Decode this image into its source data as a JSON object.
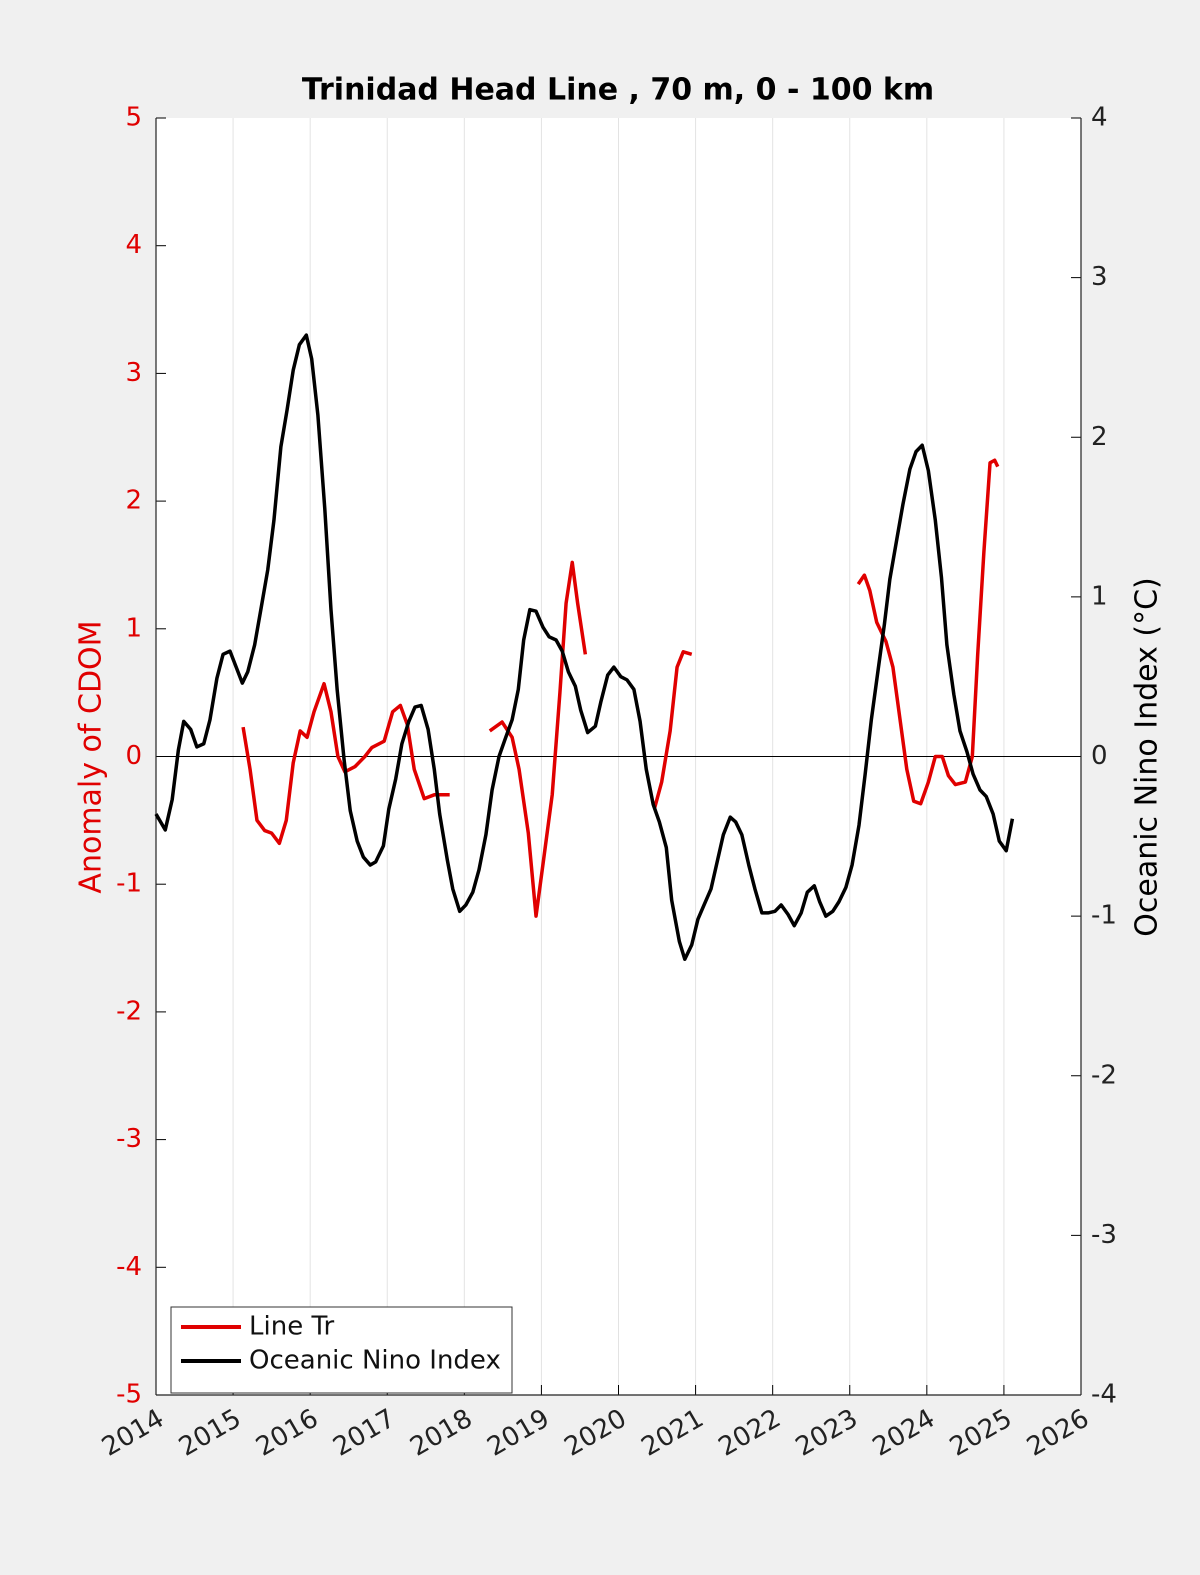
{
  "chart_data": {
    "type": "line",
    "title": "Trinidad Head Line , 70 m, 0 - 100 km",
    "ylabel": "Anomaly of CDOM",
    "y2label": "Oceanic Nino Index (°C)",
    "xlim": [
      2014,
      2026
    ],
    "xticks": [
      2014,
      2015,
      2016,
      2017,
      2018,
      2019,
      2020,
      2021,
      2022,
      2023,
      2024,
      2025,
      2026
    ],
    "ylim": [
      -5,
      5
    ],
    "yticks": [
      -5,
      -4,
      -3,
      -2,
      -1,
      0,
      1,
      2,
      3,
      4,
      5
    ],
    "y2lim": [
      -4,
      4
    ],
    "y2ticks": [
      -4,
      -3,
      -2,
      -1,
      0,
      1,
      2,
      3,
      4
    ],
    "ycolor": "#e00000",
    "grid": "x",
    "legend": "lower left",
    "series": [
      {
        "name": "Line Tr",
        "color": "#e00000",
        "axis": "y",
        "x": [
          2015.13,
          2015.22,
          2015.31,
          2015.41,
          2015.5,
          2015.6,
          2015.69,
          2015.78,
          2015.87,
          2015.96,
          2016.05,
          2016.18,
          2016.27,
          2016.36,
          2016.45,
          2016.58,
          2016.71,
          2016.8,
          2016.96,
          2017.07,
          2017.17,
          2017.26,
          2017.35,
          2017.48,
          2017.61,
          2017.81,
          2018.0,
          2018.33,
          2018.49,
          2018.62,
          2018.71,
          2018.83,
          2018.93,
          2019.03,
          2019.14,
          2019.24,
          2019.32,
          2019.4,
          2019.47,
          2019.57,
          2020.0,
          2020.47,
          2020.56,
          2020.67,
          2020.76,
          2020.84,
          2020.95,
          2022.0,
          2023.11,
          2023.19,
          2023.26,
          2023.35,
          2023.47,
          2023.56,
          2023.65,
          2023.74,
          2023.83,
          2023.92,
          2024.02,
          2024.11,
          2024.2,
          2024.28,
          2024.37,
          2024.5,
          2024.59,
          2024.66,
          2024.74,
          2024.82,
          2024.88,
          2024.92
        ],
        "values": [
          0.23,
          -0.1,
          -0.5,
          -0.58,
          -0.6,
          -0.68,
          -0.5,
          -0.05,
          0.2,
          0.15,
          0.35,
          0.57,
          0.35,
          0.0,
          -0.12,
          -0.08,
          0.0,
          0.07,
          0.12,
          0.35,
          0.4,
          0.25,
          -0.1,
          -0.33,
          -0.3,
          -0.3,
          null,
          0.2,
          0.27,
          0.15,
          -0.1,
          -0.6,
          -1.25,
          -0.8,
          -0.3,
          0.5,
          1.2,
          1.52,
          1.2,
          0.8,
          null,
          -0.4,
          -0.2,
          0.2,
          0.7,
          0.82,
          0.8,
          null,
          1.35,
          1.42,
          1.3,
          1.05,
          0.9,
          0.7,
          0.3,
          -0.1,
          -0.35,
          -0.37,
          -0.2,
          0.0,
          0.0,
          -0.15,
          -0.22,
          -0.2,
          0.0,
          0.8,
          1.6,
          2.3,
          2.32,
          2.27
        ]
      },
      {
        "name": "Oceanic Nino Index",
        "color": "#000000",
        "axis": "y2",
        "x": [
          2014.0,
          2014.12,
          2014.21,
          2014.29,
          2014.36,
          2014.45,
          2014.53,
          2014.62,
          2014.7,
          2014.79,
          2014.87,
          2014.96,
          2015.04,
          2015.12,
          2015.19,
          2015.28,
          2015.36,
          2015.45,
          2015.53,
          2015.62,
          2015.7,
          2015.78,
          2015.86,
          2015.95,
          2016.02,
          2016.1,
          2016.19,
          2016.27,
          2016.35,
          2016.44,
          2016.52,
          2016.61,
          2016.69,
          2016.78,
          2016.85,
          2016.95,
          2017.02,
          2017.11,
          2017.19,
          2017.28,
          2017.36,
          2017.44,
          2017.53,
          2017.61,
          2017.68,
          2017.78,
          2017.85,
          2017.94,
          2018.02,
          2018.11,
          2018.19,
          2018.28,
          2018.36,
          2018.45,
          2018.53,
          2018.62,
          2018.7,
          2018.77,
          2018.85,
          2018.93,
          2019.02,
          2019.1,
          2019.19,
          2019.27,
          2019.35,
          2019.44,
          2019.51,
          2019.6,
          2019.7,
          2019.77,
          2019.86,
          2019.94,
          2020.03,
          2020.11,
          2020.2,
          2020.28,
          2020.36,
          2020.45,
          2020.53,
          2020.62,
          2020.69,
          2020.79,
          2020.86,
          2020.95,
          2021.03,
          2021.11,
          2021.2,
          2021.28,
          2021.36,
          2021.45,
          2021.52,
          2021.6,
          2021.69,
          2021.77,
          2021.86,
          2021.94,
          2022.03,
          2022.11,
          2022.2,
          2022.28,
          2022.37,
          2022.45,
          2022.54,
          2022.61,
          2022.69,
          2022.78,
          2022.86,
          2022.95,
          2023.03,
          2023.12,
          2023.2,
          2023.28,
          2023.37,
          2023.45,
          2023.52,
          2023.61,
          2023.69,
          2023.78,
          2023.86,
          2023.94,
          2024.02,
          2024.11,
          2024.19,
          2024.26,
          2024.35,
          2024.43,
          2024.52,
          2024.6,
          2024.69,
          2024.77,
          2024.86,
          2024.94,
          2025.03,
          2025.11
        ],
        "values": [
          -0.36,
          -0.46,
          -0.27,
          0.04,
          0.22,
          0.17,
          0.06,
          0.08,
          0.23,
          0.49,
          0.64,
          0.66,
          0.56,
          0.46,
          0.53,
          0.7,
          0.92,
          1.17,
          1.48,
          1.94,
          2.17,
          2.42,
          2.58,
          2.64,
          2.49,
          2.14,
          1.55,
          0.92,
          0.42,
          -0.02,
          -0.34,
          -0.53,
          -0.63,
          -0.68,
          -0.66,
          -0.56,
          -0.33,
          -0.14,
          0.08,
          0.22,
          0.31,
          0.32,
          0.17,
          -0.08,
          -0.36,
          -0.65,
          -0.83,
          -0.97,
          -0.93,
          -0.85,
          -0.71,
          -0.49,
          -0.21,
          0.0,
          0.11,
          0.23,
          0.42,
          0.73,
          0.92,
          0.91,
          0.81,
          0.75,
          0.73,
          0.66,
          0.53,
          0.44,
          0.29,
          0.15,
          0.19,
          0.34,
          0.51,
          0.56,
          0.5,
          0.48,
          0.42,
          0.22,
          -0.08,
          -0.3,
          -0.41,
          -0.57,
          -0.9,
          -1.16,
          -1.27,
          -1.18,
          -1.02,
          -0.93,
          -0.83,
          -0.66,
          -0.49,
          -0.38,
          -0.41,
          -0.49,
          -0.68,
          -0.83,
          -0.98,
          -0.98,
          -0.97,
          -0.93,
          -0.99,
          -1.06,
          -0.98,
          -0.85,
          -0.81,
          -0.91,
          -1.0,
          -0.97,
          -0.91,
          -0.82,
          -0.68,
          -0.43,
          -0.11,
          0.23,
          0.55,
          0.83,
          1.11,
          1.36,
          1.58,
          1.8,
          1.91,
          1.95,
          1.79,
          1.48,
          1.12,
          0.7,
          0.39,
          0.16,
          0.03,
          -0.11,
          -0.21,
          -0.25,
          -0.36,
          -0.53,
          -0.59,
          -0.39
        ]
      }
    ]
  }
}
